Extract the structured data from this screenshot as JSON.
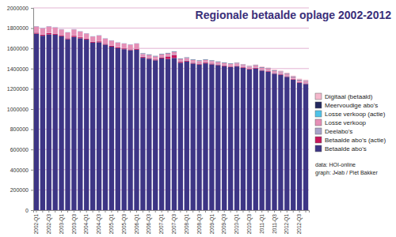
{
  "chart_data": {
    "type": "bar",
    "title": "Regionale betaalde oplage 2002-2012",
    "annotations": [
      "data: HOI-online",
      "graph: J•lab / Piet Bakker"
    ],
    "categories": [
      "2002-Q1",
      null,
      "2002-Q3",
      null,
      "2003-Q1",
      null,
      "2003-Q3",
      null,
      "2004-Q1",
      null,
      "2004-Q3",
      null,
      "2005-Q1",
      null,
      "2005-Q3",
      null,
      "2006-Q1",
      null,
      "2006-Q3",
      null,
      "2007-Q1",
      null,
      "2007-Q3",
      null,
      "2008-Q1",
      null,
      "2008-Q3",
      null,
      "2009-Q1",
      null,
      "2009-Q3",
      null,
      "2010-Q1",
      null,
      "2010-Q3",
      null,
      "2011-Q1",
      null,
      "2011-Q3",
      null,
      "2012-Q1",
      null,
      "2012-Q3",
      null
    ],
    "series": [
      {
        "name": "Betaalde abo's",
        "color": "#3d3585",
        "values": [
          1745000,
          1725000,
          1738000,
          1735000,
          1720000,
          1690000,
          1713000,
          1700000,
          1687000,
          1657000,
          1660000,
          1637000,
          1617000,
          1602000,
          1592000,
          1582000,
          1587000,
          1507000,
          1497000,
          1482000,
          1500000,
          1495000,
          1505000,
          1458000,
          1470000,
          1450000,
          1440000,
          1452000,
          1442000,
          1434000,
          1424000,
          1414000,
          1421000,
          1407000,
          1391000,
          1401000,
          1380000,
          1370000,
          1349000,
          1339000,
          1318000,
          1289000,
          1258000,
          1247000
        ]
      },
      {
        "name": "Betaalde abo's (actie)",
        "color": "#c8165a",
        "values": [
          10000,
          10000,
          12000,
          10000,
          10000,
          10000,
          12000,
          10000,
          8000,
          8000,
          10000,
          8000,
          8000,
          8000,
          8000,
          8000,
          8000,
          8000,
          8000,
          8000,
          10000,
          25000,
          30000,
          10000,
          8000,
          8000,
          8000,
          8000,
          8000,
          6000,
          6000,
          6000,
          6000,
          6000,
          6000,
          6000,
          6000,
          6000,
          6000,
          6000,
          6000,
          6000,
          6000,
          6000
        ]
      },
      {
        "name": "Deelabo's",
        "color": "#a7a3c9",
        "values": [
          3000,
          3000,
          3000,
          3000,
          3000,
          3000,
          3000,
          3000,
          3000,
          3000,
          3000,
          3000,
          3000,
          3000,
          3000,
          3000,
          3000,
          5000,
          5000,
          5000,
          5000,
          5000,
          5000,
          5000,
          5000,
          5000,
          5000,
          5000,
          5000,
          5000,
          5000,
          5000,
          5000,
          5000,
          5000,
          5000,
          5000,
          5000,
          5000,
          5000,
          5000,
          5000,
          5000,
          5000
        ]
      },
      {
        "name": "Losse verkoop",
        "color": "#e58fb6",
        "values": [
          60000,
          60000,
          65000,
          60000,
          55000,
          55000,
          60000,
          55000,
          50000,
          50000,
          55000,
          50000,
          50000,
          45000,
          45000,
          45000,
          50000,
          25000,
          25000,
          25000,
          25000,
          25000,
          25000,
          22000,
          22000,
          22000,
          22000,
          20000,
          20000,
          20000,
          20000,
          20000,
          20000,
          18000,
          18000,
          18000,
          18000,
          17000,
          17000,
          16000,
          16000,
          15000,
          15000,
          15000
        ]
      },
      {
        "name": "Losse verkoop (actie)",
        "color": "#4fc3e8",
        "values": [
          2000,
          2000,
          2000,
          2000,
          2000,
          2000,
          2000,
          2000,
          2000,
          2000,
          2000,
          2000,
          2000,
          2000,
          2000,
          2000,
          2000,
          2000,
          2000,
          2000,
          2000,
          2000,
          2000,
          2000,
          2000,
          2000,
          2000,
          2000,
          2000,
          2000,
          2000,
          2000,
          2000,
          2000,
          2000,
          2000,
          2000,
          2000,
          2000,
          2000,
          2000,
          2000,
          2000,
          2000
        ]
      },
      {
        "name": "Meervoudige abo's",
        "color": "#23285e",
        "values": [
          0,
          0,
          0,
          0,
          0,
          0,
          0,
          0,
          0,
          0,
          0,
          0,
          0,
          0,
          0,
          0,
          0,
          3000,
          3000,
          3000,
          3000,
          3000,
          3000,
          3000,
          3000,
          3000,
          3000,
          3000,
          3000,
          3000,
          3000,
          3000,
          3000,
          3000,
          3000,
          3000,
          3000,
          3000,
          3000,
          3000,
          3000,
          3000,
          3000,
          3000
        ]
      },
      {
        "name": "Digitaal (betaald)",
        "color": "#f5b8cc",
        "values": [
          0,
          0,
          0,
          0,
          0,
          0,
          0,
          0,
          0,
          0,
          0,
          0,
          0,
          0,
          0,
          0,
          0,
          0,
          0,
          0,
          0,
          0,
          0,
          0,
          0,
          0,
          0,
          0,
          0,
          0,
          0,
          0,
          3000,
          4000,
          5000,
          5000,
          6000,
          7000,
          8000,
          9000,
          10000,
          10000,
          11000,
          12000
        ]
      }
    ],
    "ylim": [
      0,
      2000000
    ],
    "yticks": [
      0,
      200000,
      400000,
      600000,
      800000,
      1000000,
      1200000,
      1400000,
      1600000,
      1800000,
      2000000
    ],
    "stacked": true,
    "grid": true,
    "legend": "right"
  }
}
